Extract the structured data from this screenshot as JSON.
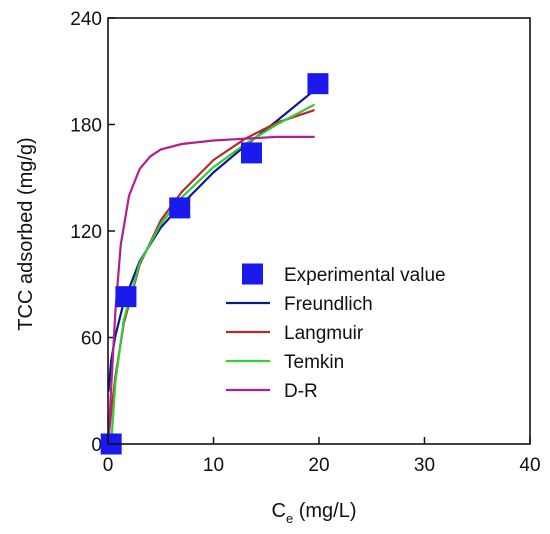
{
  "chart_data": {
    "type": "line",
    "xlabel_main": "C",
    "xlabel_sub": "e",
    "xlabel_unit": " (mg/L)",
    "ylabel": "TCC adsorbed (mg/g)",
    "xlim": [
      0,
      40
    ],
    "ylim": [
      0,
      240
    ],
    "xticks": [
      0,
      10,
      20,
      30,
      40
    ],
    "yticks": [
      0,
      60,
      120,
      180,
      240
    ],
    "grid": false,
    "legend_position": "center-right",
    "series": [
      {
        "name": "Experimental value",
        "kind": "scatter",
        "marker": "square",
        "color": "#1a1aee",
        "x": [
          0.3,
          1.7,
          6.8,
          13.6,
          19.9
        ],
        "y": [
          0,
          83,
          133,
          164,
          203
        ]
      },
      {
        "name": "Freundlich",
        "kind": "line",
        "color": "#0a1a8c",
        "x": [
          0.05,
          0.3,
          0.7,
          1.5,
          3,
          5,
          7,
          10,
          13,
          16,
          19.5
        ],
        "y": [
          30,
          47,
          61,
          80,
          103,
          122,
          135,
          153,
          168,
          182,
          199
        ]
      },
      {
        "name": "Langmuir",
        "kind": "line",
        "color": "#b8282c",
        "x": [
          0.05,
          0.3,
          0.7,
          1.5,
          3,
          5,
          7,
          10,
          13,
          16,
          19.5
        ],
        "y": [
          3,
          18,
          38,
          68,
          101,
          126,
          142,
          160,
          172,
          181,
          188
        ]
      },
      {
        "name": "Temkin",
        "kind": "line",
        "color": "#33cc33",
        "x": [
          0.3,
          0.7,
          1.5,
          3,
          5,
          7,
          10,
          13,
          16,
          19.5
        ],
        "y": [
          0,
          35,
          70,
          102,
          124,
          139,
          156,
          169,
          180,
          191
        ]
      },
      {
        "name": "D-R",
        "kind": "line",
        "color": "#b0208c",
        "x": [
          0.05,
          0.3,
          0.7,
          1.2,
          2,
          3,
          4,
          5,
          7,
          10,
          13,
          16,
          19.5
        ],
        "y": [
          2,
          32,
          75,
          112,
          140,
          155,
          162,
          166,
          169,
          171,
          172,
          173,
          173
        ]
      }
    ]
  }
}
